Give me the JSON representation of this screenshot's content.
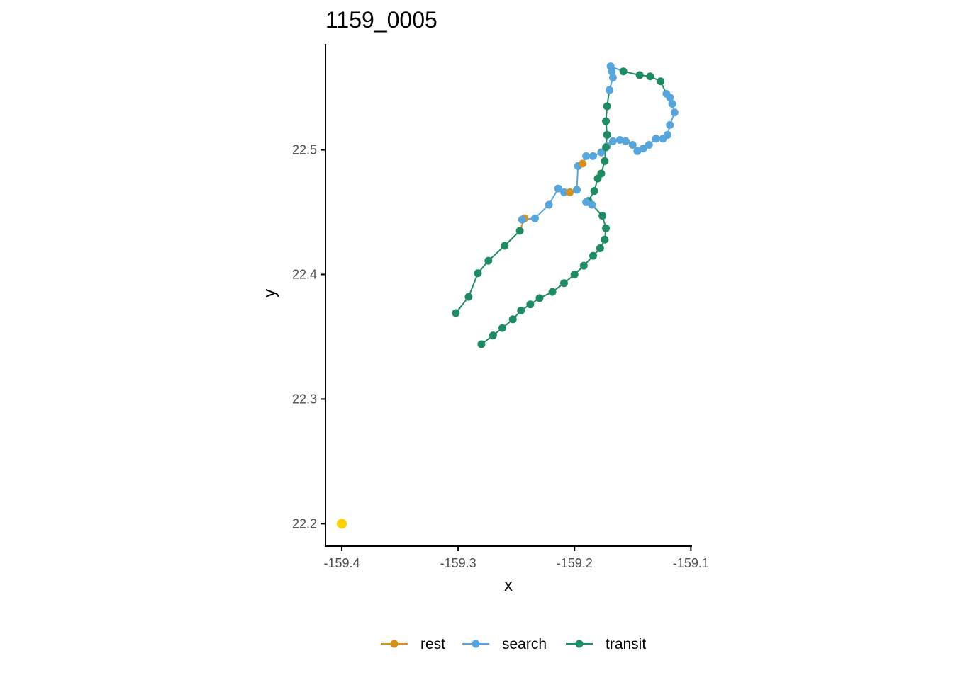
{
  "chart_data": {
    "type": "scatter",
    "title": "1159_0005",
    "xlabel": "x",
    "ylabel": "y",
    "xlim": [
      -159.414,
      -159.099
    ],
    "ylim": [
      22.182,
      22.585
    ],
    "x_ticks": [
      -159.4,
      -159.3,
      -159.2,
      -159.1
    ],
    "x_tick_labels": [
      "-159.4",
      "-159.3",
      "-159.2",
      "-159.1"
    ],
    "y_ticks": [
      22.2,
      22.3,
      22.4,
      22.5
    ],
    "y_tick_labels": [
      "22.2",
      "22.3",
      "22.4",
      "22.5"
    ],
    "grid": false,
    "legend_position": "bottom",
    "legend": [
      {
        "label": "rest",
        "color": "#D8901C"
      },
      {
        "label": "search",
        "color": "#56A6DD"
      },
      {
        "label": "transit",
        "color": "#1E8C63"
      }
    ],
    "start_point": {
      "x": -159.4,
      "y": 22.2,
      "color": "#FFD000"
    },
    "track": [
      {
        "x": -159.302,
        "y": 22.369,
        "state": "transit"
      },
      {
        "x": -159.291,
        "y": 22.382,
        "state": "transit"
      },
      {
        "x": -159.283,
        "y": 22.401,
        "state": "transit"
      },
      {
        "x": -159.274,
        "y": 22.411,
        "state": "transit"
      },
      {
        "x": -159.26,
        "y": 22.423,
        "state": "transit"
      },
      {
        "x": -159.247,
        "y": 22.435,
        "state": "transit"
      },
      {
        "x": -159.243,
        "y": 22.445,
        "state": "rest"
      },
      {
        "x": -159.245,
        "y": 22.444,
        "state": "search"
      },
      {
        "x": -159.234,
        "y": 22.445,
        "state": "search"
      },
      {
        "x": -159.222,
        "y": 22.456,
        "state": "search"
      },
      {
        "x": -159.214,
        "y": 22.469,
        "state": "search"
      },
      {
        "x": -159.209,
        "y": 22.466,
        "state": "search"
      },
      {
        "x": -159.204,
        "y": 22.466,
        "state": "rest"
      },
      {
        "x": -159.198,
        "y": 22.468,
        "state": "search"
      },
      {
        "x": -159.197,
        "y": 22.487,
        "state": "search"
      },
      {
        "x": -159.193,
        "y": 22.489,
        "state": "rest"
      },
      {
        "x": -159.19,
        "y": 22.495,
        "state": "search"
      },
      {
        "x": -159.184,
        "y": 22.495,
        "state": "search"
      },
      {
        "x": -159.177,
        "y": 22.498,
        "state": "search"
      },
      {
        "x": -159.172,
        "y": 22.503,
        "state": "search"
      },
      {
        "x": -159.167,
        "y": 22.507,
        "state": "search"
      },
      {
        "x": -159.161,
        "y": 22.508,
        "state": "search"
      },
      {
        "x": -159.156,
        "y": 22.507,
        "state": "search"
      },
      {
        "x": -159.15,
        "y": 22.504,
        "state": "search"
      },
      {
        "x": -159.146,
        "y": 22.499,
        "state": "search"
      },
      {
        "x": -159.141,
        "y": 22.501,
        "state": "search"
      },
      {
        "x": -159.136,
        "y": 22.504,
        "state": "search"
      },
      {
        "x": -159.13,
        "y": 22.509,
        "state": "search"
      },
      {
        "x": -159.124,
        "y": 22.509,
        "state": "search"
      },
      {
        "x": -159.12,
        "y": 22.512,
        "state": "search"
      },
      {
        "x": -159.118,
        "y": 22.52,
        "state": "search"
      },
      {
        "x": -159.114,
        "y": 22.53,
        "state": "search"
      },
      {
        "x": -159.116,
        "y": 22.537,
        "state": "search"
      },
      {
        "x": -159.118,
        "y": 22.542,
        "state": "search"
      },
      {
        "x": -159.121,
        "y": 22.545,
        "state": "search"
      },
      {
        "x": -159.126,
        "y": 22.555,
        "state": "transit"
      },
      {
        "x": -159.135,
        "y": 22.559,
        "state": "transit"
      },
      {
        "x": -159.144,
        "y": 22.56,
        "state": "transit"
      },
      {
        "x": -159.158,
        "y": 22.563,
        "state": "transit"
      },
      {
        "x": -159.169,
        "y": 22.567,
        "state": "search"
      },
      {
        "x": -159.168,
        "y": 22.563,
        "state": "search"
      },
      {
        "x": -159.167,
        "y": 22.558,
        "state": "search"
      },
      {
        "x": -159.17,
        "y": 22.548,
        "state": "search"
      },
      {
        "x": -159.172,
        "y": 22.535,
        "state": "transit"
      },
      {
        "x": -159.173,
        "y": 22.523,
        "state": "transit"
      },
      {
        "x": -159.172,
        "y": 22.512,
        "state": "transit"
      },
      {
        "x": -159.173,
        "y": 22.502,
        "state": "transit"
      },
      {
        "x": -159.174,
        "y": 22.491,
        "state": "transit"
      },
      {
        "x": -159.177,
        "y": 22.481,
        "state": "transit"
      },
      {
        "x": -159.18,
        "y": 22.477,
        "state": "transit"
      },
      {
        "x": -159.183,
        "y": 22.467,
        "state": "transit"
      },
      {
        "x": -159.188,
        "y": 22.459,
        "state": "transit"
      },
      {
        "x": -159.19,
        "y": 22.458,
        "state": "search"
      },
      {
        "x": -159.185,
        "y": 22.456,
        "state": "search"
      },
      {
        "x": -159.176,
        "y": 22.447,
        "state": "transit"
      },
      {
        "x": -159.173,
        "y": 22.437,
        "state": "transit"
      },
      {
        "x": -159.174,
        "y": 22.428,
        "state": "transit"
      },
      {
        "x": -159.178,
        "y": 22.421,
        "state": "transit"
      },
      {
        "x": -159.184,
        "y": 22.415,
        "state": "transit"
      },
      {
        "x": -159.192,
        "y": 22.407,
        "state": "transit"
      },
      {
        "x": -159.2,
        "y": 22.4,
        "state": "transit"
      },
      {
        "x": -159.209,
        "y": 22.393,
        "state": "transit"
      },
      {
        "x": -159.219,
        "y": 22.386,
        "state": "transit"
      },
      {
        "x": -159.23,
        "y": 22.381,
        "state": "transit"
      },
      {
        "x": -159.238,
        "y": 22.376,
        "state": "transit"
      },
      {
        "x": -159.246,
        "y": 22.371,
        "state": "transit"
      },
      {
        "x": -159.253,
        "y": 22.364,
        "state": "transit"
      },
      {
        "x": -159.262,
        "y": 22.357,
        "state": "transit"
      },
      {
        "x": -159.27,
        "y": 22.351,
        "state": "transit"
      },
      {
        "x": -159.28,
        "y": 22.344,
        "state": "transit"
      }
    ]
  }
}
